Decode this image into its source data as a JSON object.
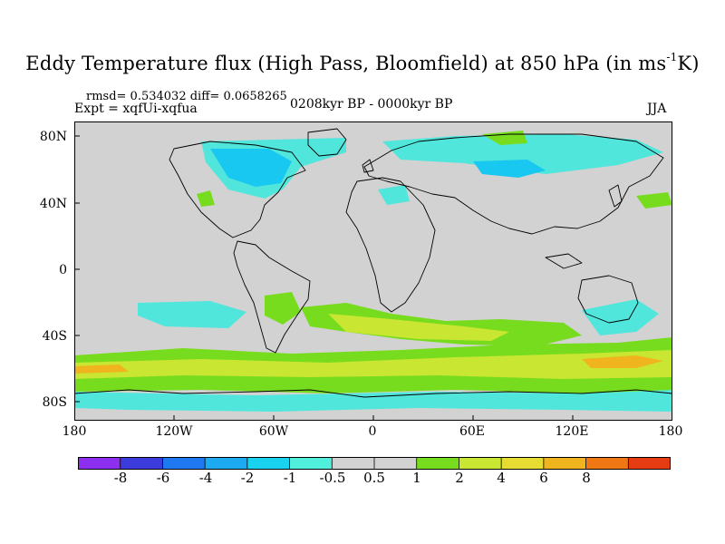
{
  "title_main": "Eddy Temperature flux (High Pass, Bloomfield) at 850 hPa (in ms",
  "title_sup": "-1",
  "title_tail": "K)",
  "stats": "rmsd= 0.534032 diff= 0.0658265",
  "expt": "Expt = xqfUi-xqfua",
  "period": "0208kyr BP - 0000kyr BP",
  "season": "JJA",
  "lat_labels": [
    "80N",
    "40N",
    "0",
    "40S",
    "80S"
  ],
  "lon_labels": [
    "180",
    "120W",
    "60W",
    "0",
    "60E",
    "120E",
    "180"
  ],
  "colorbar": {
    "colors": [
      "#8c2ff0",
      "#3c3cdc",
      "#1e78f0",
      "#1eaaf0",
      "#18d2f0",
      "#50f0dc",
      "#d2d2d2",
      "#d2d2d2",
      "#78dc1e",
      "#c8e632",
      "#e6dc32",
      "#f0b41e",
      "#f07814",
      "#e63c14"
    ],
    "labels": [
      "-8",
      "-6",
      "-4",
      "-2",
      "-1",
      "-0.5",
      "0.5",
      "1",
      "2",
      "4",
      "6",
      "8"
    ]
  },
  "map_colors": {
    "background": "#d2d2d2",
    "weak_negative": "#50e6dc",
    "negative": "#18c8f0",
    "weak_positive": "#78dc1e",
    "positive": "#c8e632",
    "strong_positive": "#f0b41e",
    "coast": "#000000"
  }
}
